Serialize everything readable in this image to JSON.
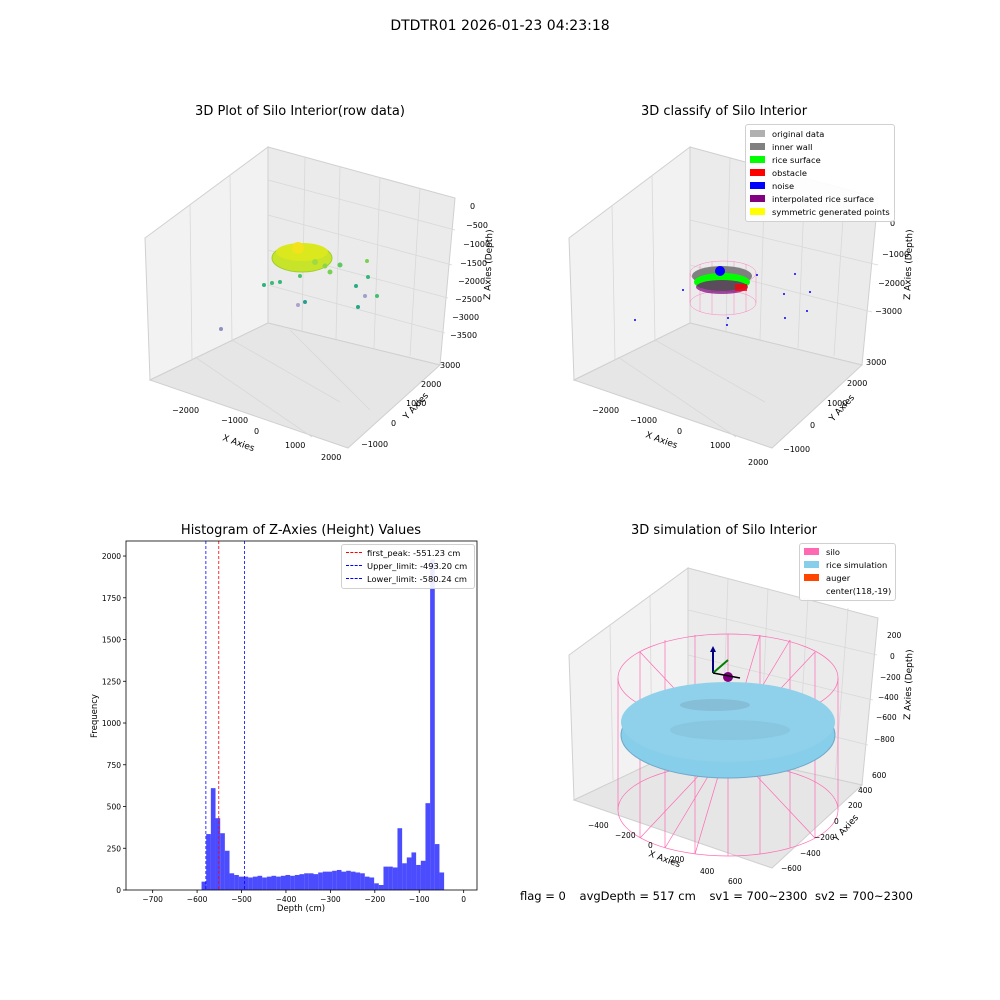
{
  "figure": {
    "suptitle": "DTDTR01 2026-01-23 04:23:18"
  },
  "panels": {
    "raw": {
      "title": "3D Plot of Silo Interior(row data)",
      "xlabel": "X Axies",
      "ylabel": "Y Axies",
      "zlabel": "Z Axies (Depth)",
      "xticks": [
        "−2000",
        "−1000",
        "0",
        "1000",
        "2000"
      ],
      "yticks": [
        "−1000",
        "0",
        "1000",
        "2000",
        "3000"
      ],
      "zticks": [
        "0",
        "−500",
        "−1000",
        "−1500",
        "−2000",
        "−2500",
        "−3000",
        "−3500"
      ]
    },
    "classify": {
      "title": "3D classify of Silo Interior",
      "xlabel": "X Axies",
      "ylabel": "Y Axies",
      "zlabel": "Z Axies (Depth)",
      "xticks": [
        "−2000",
        "−1000",
        "0",
        "1000",
        "2000"
      ],
      "yticks": [
        "−1000",
        "0",
        "1000",
        "2000",
        "3000"
      ],
      "zticks": [
        "0",
        "−1000",
        "−2000",
        "−3000"
      ],
      "legend": [
        {
          "label": "original data",
          "color": "#b0b0b0"
        },
        {
          "label": "inner wall",
          "color": "#808080"
        },
        {
          "label": "rice surface",
          "color": "#00ff00"
        },
        {
          "label": "obstacle",
          "color": "#ff0000"
        },
        {
          "label": "noise",
          "color": "#0000ff"
        },
        {
          "label": "interpolated rice surface",
          "color": "#800080"
        },
        {
          "label": "symmetric generated points",
          "color": "#ffff00"
        }
      ]
    },
    "simulation": {
      "title": "3D simulation of Silo Interior",
      "xlabel": "X Axies",
      "ylabel": "Y Axies",
      "zlabel": "Z Axies (Depth)",
      "xticks": [
        "−400",
        "−200",
        "0",
        "200",
        "400",
        "600"
      ],
      "yticks": [
        "−600",
        "−400",
        "−200",
        "0",
        "200",
        "400",
        "600"
      ],
      "zticks": [
        "200",
        "0",
        "−200",
        "−400",
        "−600",
        "−800"
      ],
      "legend": [
        {
          "label": "silo",
          "color": "#ff69b4"
        },
        {
          "label": "rice simulation",
          "color": "#87ceeb"
        },
        {
          "label": "auger",
          "color": "#ff4500"
        },
        {
          "label": "center(118,-19)",
          "color": "#ffffff"
        }
      ]
    }
  },
  "chart_data": [
    {
      "type": "bar",
      "title": "Histogram of Z-Axies (Height) Values",
      "xlabel": "Depth (cm)",
      "ylabel": "Frequency",
      "xlim": [
        -760,
        30
      ],
      "ylim": [
        0,
        2090
      ],
      "bar_color": "#0000ff",
      "bar_alpha": 0.7,
      "bin_width": 10.5,
      "xticks": [
        -700,
        -600,
        -500,
        -400,
        -300,
        -200,
        -100,
        0
      ],
      "yticks": [
        0,
        250,
        500,
        750,
        1000,
        1250,
        1500,
        1750,
        2000
      ],
      "bins": [
        {
          "start": -590,
          "count": 50
        },
        {
          "start": -579.5,
          "count": 335
        },
        {
          "start": -569,
          "count": 610
        },
        {
          "start": -558.5,
          "count": 430
        },
        {
          "start": -548,
          "count": 340
        },
        {
          "start": -537.5,
          "count": 235
        },
        {
          "start": -527,
          "count": 100
        },
        {
          "start": -516.5,
          "count": 90
        },
        {
          "start": -506,
          "count": 80
        },
        {
          "start": -495.5,
          "count": 80
        },
        {
          "start": -485,
          "count": 75
        },
        {
          "start": -474.5,
          "count": 80
        },
        {
          "start": -464,
          "count": 85
        },
        {
          "start": -453.5,
          "count": 75
        },
        {
          "start": -443,
          "count": 80
        },
        {
          "start": -432.5,
          "count": 85
        },
        {
          "start": -422,
          "count": 80
        },
        {
          "start": -411.5,
          "count": 85
        },
        {
          "start": -401,
          "count": 90
        },
        {
          "start": -390.5,
          "count": 85
        },
        {
          "start": -380,
          "count": 90
        },
        {
          "start": -369.5,
          "count": 95
        },
        {
          "start": -359,
          "count": 100
        },
        {
          "start": -348.5,
          "count": 100
        },
        {
          "start": -338,
          "count": 95
        },
        {
          "start": -327.5,
          "count": 105
        },
        {
          "start": -317,
          "count": 110
        },
        {
          "start": -306.5,
          "count": 110
        },
        {
          "start": -296,
          "count": 115
        },
        {
          "start": -285.5,
          "count": 120
        },
        {
          "start": -275,
          "count": 110
        },
        {
          "start": -264.5,
          "count": 115
        },
        {
          "start": -254,
          "count": 110
        },
        {
          "start": -243.5,
          "count": 105
        },
        {
          "start": -233,
          "count": 100
        },
        {
          "start": -222.5,
          "count": 80
        },
        {
          "start": -212,
          "count": 75
        },
        {
          "start": -201.5,
          "count": 40
        },
        {
          "start": -191,
          "count": 30
        },
        {
          "start": -180.5,
          "count": 140
        },
        {
          "start": -170,
          "count": 140
        },
        {
          "start": -159.5,
          "count": 135
        },
        {
          "start": -149,
          "count": 370
        },
        {
          "start": -138.5,
          "count": 160
        },
        {
          "start": -128,
          "count": 195
        },
        {
          "start": -117.5,
          "count": 225
        },
        {
          "start": -107,
          "count": 150
        },
        {
          "start": -96.5,
          "count": 175
        },
        {
          "start": -86,
          "count": 520
        },
        {
          "start": -75.5,
          "count": 1980
        },
        {
          "start": -65,
          "count": 275
        },
        {
          "start": -54.5,
          "count": 105
        }
      ],
      "vlines": [
        {
          "label": "first_peak: -551.23 cm",
          "x": -551.23,
          "color": "#ff0000"
        },
        {
          "label": "Upper_limit: -493.20 cm",
          "x": -493.2,
          "color": "#0000ff"
        },
        {
          "label": "Lower_limit: -580.24 cm",
          "x": -580.24,
          "color": "#0000ff"
        }
      ],
      "legend_position": "top-right"
    }
  ],
  "footer": {
    "flag": "flag = 0",
    "avg_depth": "avgDepth = 517 cm",
    "sv1": "sv1 = 700~2300",
    "sv2": "sv2 = 700~2300"
  }
}
